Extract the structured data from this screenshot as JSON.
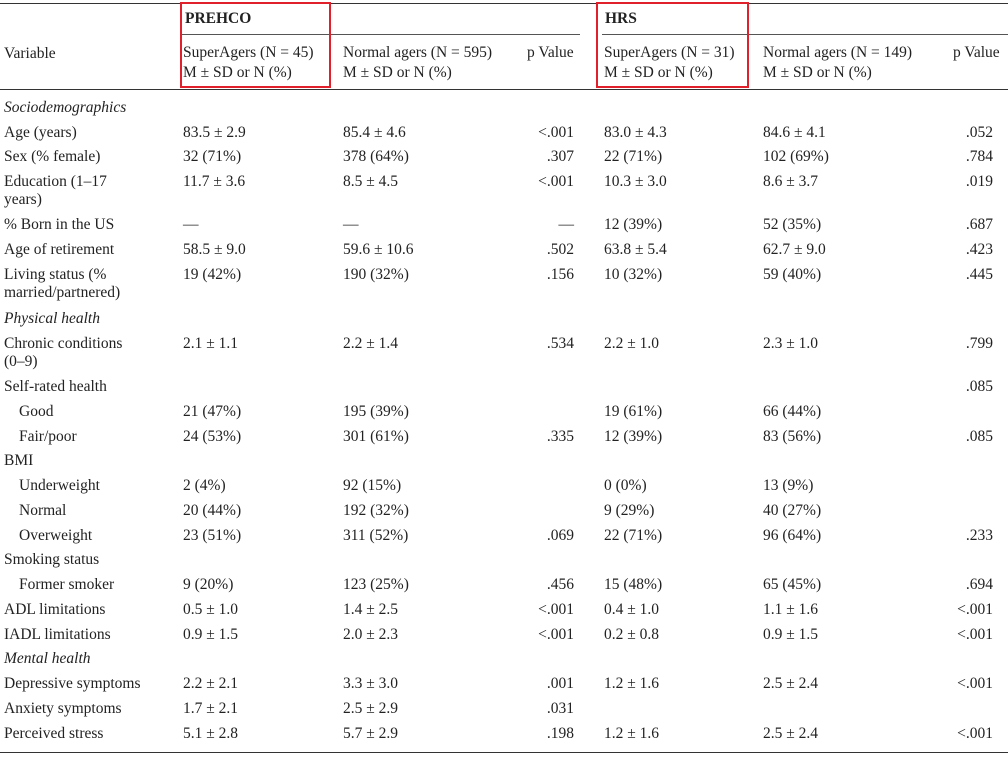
{
  "groups": {
    "prehco": "PREHCO",
    "hrs": "HRS"
  },
  "headers": {
    "variable": "Variable",
    "prehco_super": "SuperAgers (N = 45)",
    "prehco_normal": "Normal agers (N = 595)",
    "prehco_p": "p Value",
    "hrs_super": "SuperAgers (N = 31)",
    "hrs_normal": "Normal agers (N = 149)",
    "hrs_p": "p Value",
    "sub": "M ± SD or N (%)"
  },
  "highlight_color": "#e0212b",
  "rows": [
    {
      "type": "section",
      "label": "Sociodemographics"
    },
    {
      "label": "Age (years)",
      "c1": "83.5 ± 2.9",
      "c2": "85.4 ± 4.6",
      "p1": "<.001",
      "c3": "83.0 ± 4.3",
      "c4": "84.6 ± 4.1",
      "p2": ".052"
    },
    {
      "label": "Sex (% female)",
      "c1": "32 (71%)",
      "c2": "378 (64%)",
      "p1": ".307",
      "c3": "22 (71%)",
      "c4": "102 (69%)",
      "p2": ".784"
    },
    {
      "label": "Education (1–17",
      "label2": "years)",
      "c1": "11.7 ± 3.6",
      "c2": "8.5 ± 4.5",
      "p1": "<.001",
      "c3": "10.3 ± 3.0",
      "c4": "8.6 ± 3.7",
      "p2": ".019"
    },
    {
      "label": "% Born in the US",
      "c1": "—",
      "c2": "—",
      "p1": "—",
      "c3": "12 (39%)",
      "c4": "52 (35%)",
      "p2": ".687"
    },
    {
      "label": "Age of retirement",
      "c1": "58.5 ± 9.0",
      "c2": "59.6 ± 10.6",
      "p1": ".502",
      "c3": "63.8 ± 5.4",
      "c4": "62.7 ± 9.0",
      "p2": ".423"
    },
    {
      "label": "Living status (%",
      "label2": "married/partnered)",
      "c1": "19 (42%)",
      "c2": "190 (32%)",
      "p1": ".156",
      "c3": "10 (32%)",
      "c4": "59 (40%)",
      "p2": ".445"
    },
    {
      "type": "section",
      "label": "Physical health"
    },
    {
      "label": "Chronic conditions",
      "label2": "(0–9)",
      "c1": "2.1 ± 1.1",
      "c2": "2.2 ± 1.4",
      "p1": ".534",
      "c3": "2.2 ± 1.0",
      "c4": "2.3 ± 1.0",
      "p2": ".799"
    },
    {
      "label": "Self-rated health",
      "c1": "",
      "c2": "",
      "p1": "",
      "c3": "",
      "c4": "",
      "p2": ".085"
    },
    {
      "indent": true,
      "label": "Good",
      "c1": "21 (47%)",
      "c2": "195 (39%)",
      "p1": "",
      "c3": "19 (61%)",
      "c4": "66 (44%)",
      "p2": ""
    },
    {
      "indent": true,
      "label": "Fair/poor",
      "c1": "24 (53%)",
      "c2": "301 (61%)",
      "p1": ".335",
      "c3": "12 (39%)",
      "c4": "83 (56%)",
      "p2": ".085"
    },
    {
      "label": "BMI",
      "c1": "",
      "c2": "",
      "p1": "",
      "c3": "",
      "c4": "",
      "p2": ""
    },
    {
      "indent": true,
      "label": "Underweight",
      "c1": "2 (4%)",
      "c2": "92 (15%)",
      "p1": "",
      "c3": "0 (0%)",
      "c4": "13 (9%)",
      "p2": ""
    },
    {
      "indent": true,
      "label": "Normal",
      "c1": "20 (44%)",
      "c2": "192 (32%)",
      "p1": "",
      "c3": "9 (29%)",
      "c4": "40 (27%)",
      "p2": ""
    },
    {
      "indent": true,
      "label": "Overweight",
      "c1": "23 (51%)",
      "c2": "311 (52%)",
      "p1": ".069",
      "c3": "22 (71%)",
      "c4": "96 (64%)",
      "p2": ".233"
    },
    {
      "label": "Smoking status",
      "c1": "",
      "c2": "",
      "p1": "",
      "c3": "",
      "c4": "",
      "p2": ""
    },
    {
      "indent": true,
      "label": "Former smoker",
      "c1": "9 (20%)",
      "c2": "123 (25%)",
      "p1": ".456",
      "c3": "15 (48%)",
      "c4": "65 (45%)",
      "p2": ".694"
    },
    {
      "label": "ADL limitations",
      "c1": "0.5 ± 1.0",
      "c2": "1.4 ± 2.5",
      "p1": "<.001",
      "c3": "0.4 ± 1.0",
      "c4": "1.1 ± 1.6",
      "p2": "<.001"
    },
    {
      "label": "IADL limitations",
      "c1": "0.9 ± 1.5",
      "c2": "2.0 ± 2.3",
      "p1": "<.001",
      "c3": "0.2 ± 0.8",
      "c4": "0.9 ± 1.5",
      "p2": "<.001"
    },
    {
      "type": "section",
      "label": "Mental health"
    },
    {
      "label": "Depressive symptoms",
      "c1": "2.2 ± 2.1",
      "c2": "3.3 ± 3.0",
      "p1": ".001",
      "c3": "1.2 ± 1.6",
      "c4": "2.5 ± 2.4",
      "p2": "<.001"
    },
    {
      "label": "Anxiety symptoms",
      "c1": "1.7 ± 2.1",
      "c2": "2.5 ± 2.9",
      "p1": ".031",
      "c3": "",
      "c4": "",
      "p2": ""
    },
    {
      "label": "Perceived stress",
      "c1": "5.1 ± 2.8",
      "c2": "5.7 ± 2.9",
      "p1": ".198",
      "c3": "1.2 ± 1.6",
      "c4": "2.5 ± 2.4",
      "p2": "<.001"
    }
  ]
}
